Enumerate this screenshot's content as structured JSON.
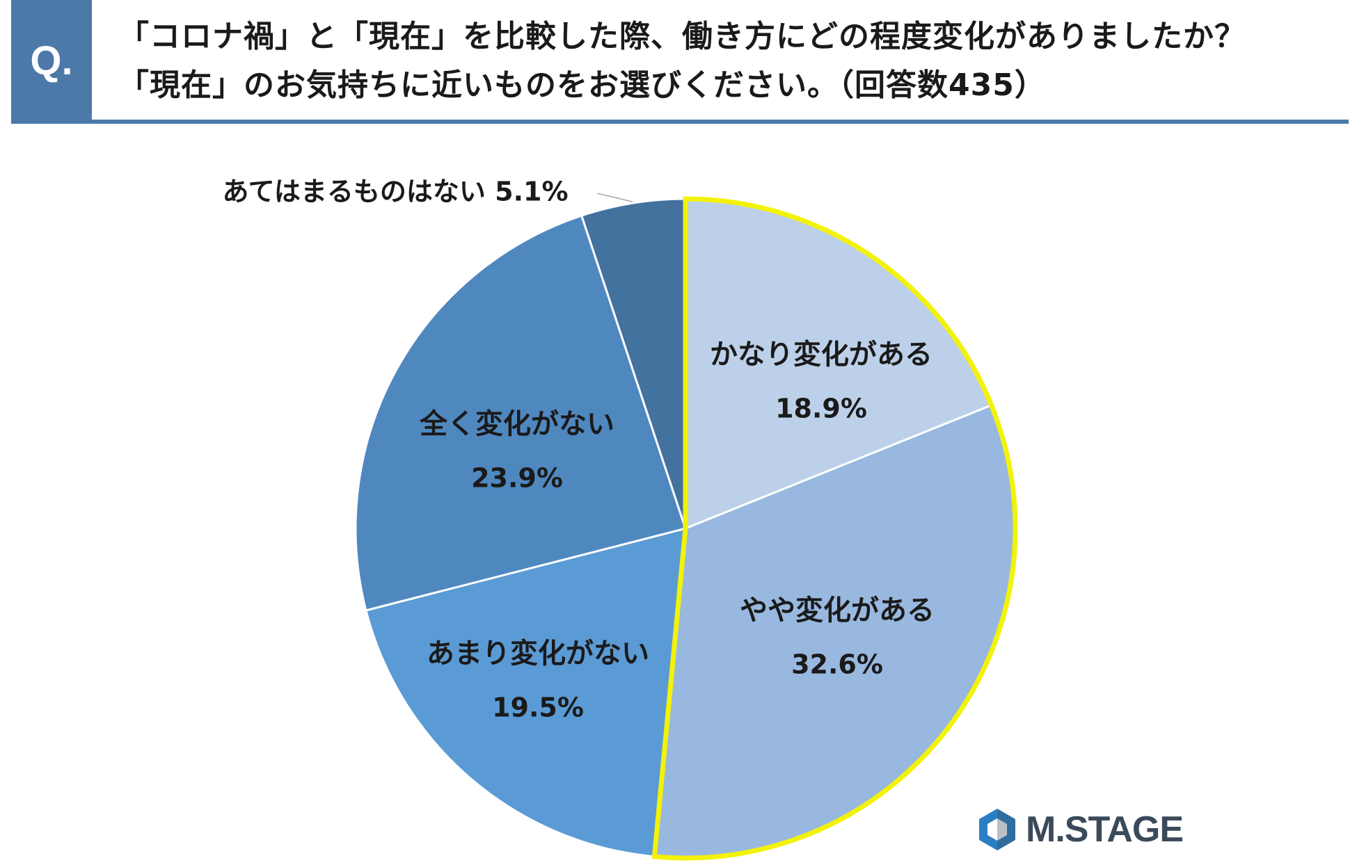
{
  "header": {
    "badge": "Q.",
    "line1": "「コロナ禍」と「現在」を比較した際、働き方にどの程度変化がありましたか？",
    "line2": "「現在」のお気持ちに近いものをお選びください。（回答数435）"
  },
  "chart_data": {
    "type": "pie",
    "unit": "%",
    "start": "12 o'clock",
    "direction": "clockwise",
    "highlight_color": "#f2f20a",
    "highlighted_slices": [
      "かなり変化がある",
      "やや変化がある"
    ],
    "slices": [
      {
        "label": "かなり変化がある",
        "value": 18.9,
        "value_label": "18.9%",
        "color": "#bdd0e9"
      },
      {
        "label": "やや変化がある",
        "value": 32.6,
        "value_label": "32.6%",
        "color": "#98b8df"
      },
      {
        "label": "あまり変化がない",
        "value": 19.5,
        "value_label": "19.5%",
        "color": "#5b9bd5"
      },
      {
        "label": "全く変化がない",
        "value": 23.9,
        "value_label": "23.9%",
        "color": "#4f88bf"
      },
      {
        "label": "あてはまるものはない",
        "value": 5.1,
        "value_label": "5.1%",
        "color": "#44729f"
      }
    ]
  },
  "logo": {
    "icon": "hexagon-logo-icon",
    "text": "M.STAGE",
    "color": "#3b4a5a"
  }
}
